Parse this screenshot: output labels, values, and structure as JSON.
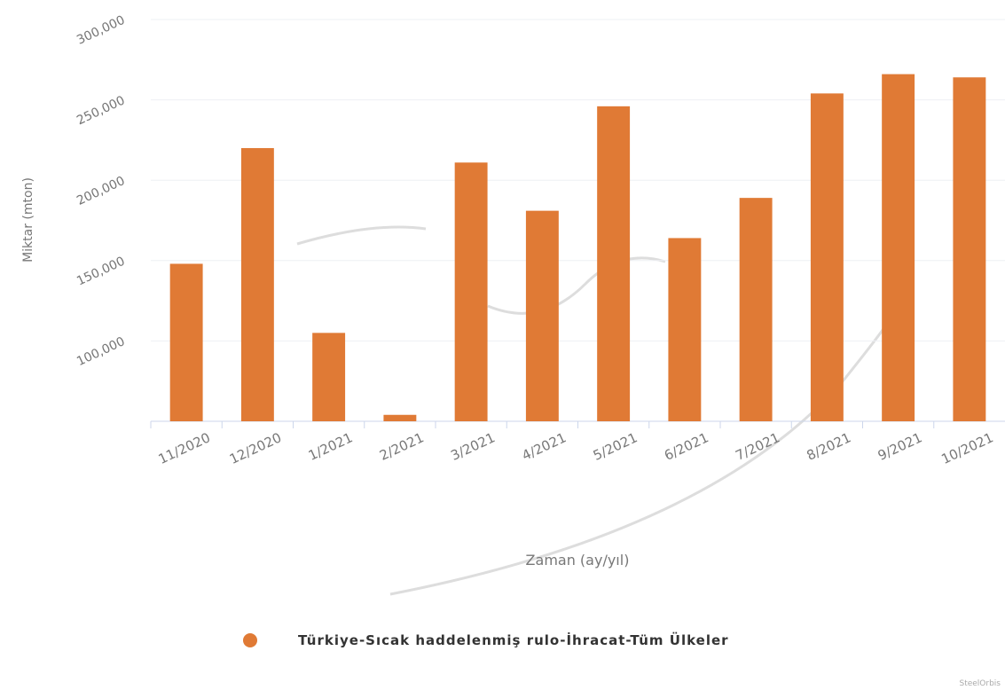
{
  "chart_data": {
    "type": "bar",
    "y_axis_label": "Miktar (mton)",
    "x_axis_label": "Zaman (ay/yıl)",
    "categories": [
      "11/2020",
      "12/2020",
      "1/2021",
      "2/2021",
      "3/2021",
      "4/2021",
      "5/2021",
      "6/2021",
      "7/2021",
      "8/2021",
      "9/2021",
      "10/2021"
    ],
    "series": [
      {
        "name": "Türkiye-Sıcak haddelenmiş rulo-İhracat-Tüm Ülkeler",
        "color": "#e07a35",
        "values": [
          148000,
          220000,
          105000,
          54000,
          211000,
          181000,
          246000,
          164000,
          189000,
          254000,
          266000,
          264000
        ]
      }
    ],
    "ylim": [
      50000,
      300000
    ],
    "yticks": [
      {
        "value": 100000,
        "label": "100,000"
      },
      {
        "value": 150000,
        "label": "150,000"
      },
      {
        "value": 200000,
        "label": "200,000"
      },
      {
        "value": 250000,
        "label": "250,000"
      },
      {
        "value": 300000,
        "label": "300,000"
      }
    ],
    "grid": true,
    "legend": "bottom",
    "credit": "SteelOrbis"
  }
}
